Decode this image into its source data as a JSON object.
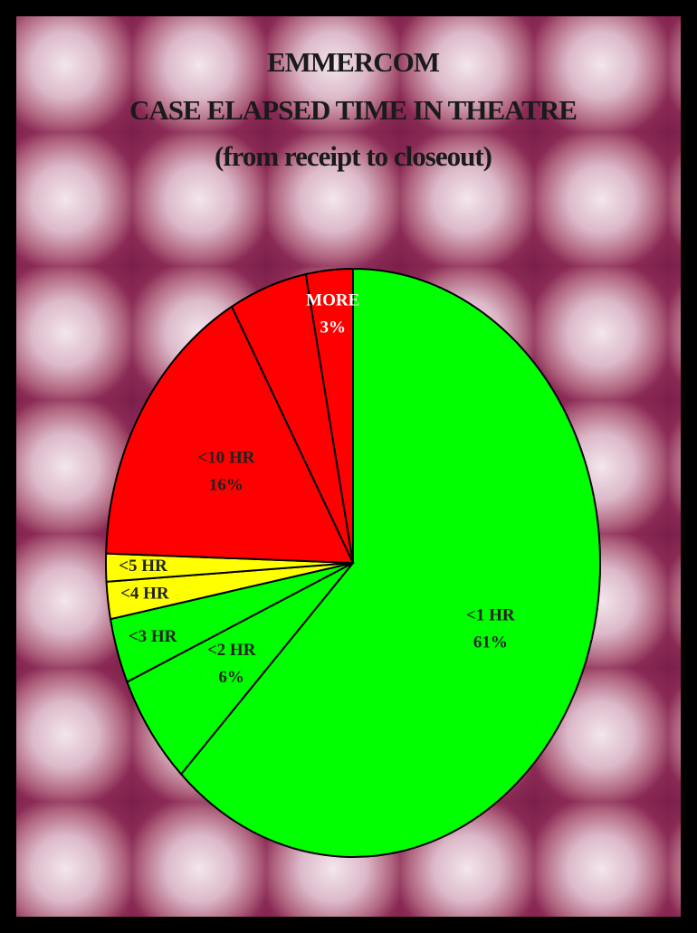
{
  "chart_data": {
    "type": "pie",
    "title": [
      "EMMERCOM",
      "CASE ELAPSED TIME IN THEATRE",
      "(from receipt to closeout)"
    ],
    "categories": [
      "<1 HR",
      "<2 HR",
      "<3 HR",
      "<4 HR",
      "<5 HR",
      "<10 HR",
      null,
      "MORE"
    ],
    "values": [
      61,
      6,
      3.5,
      2,
      1.5,
      16,
      5,
      3
    ],
    "value_labels": [
      "61%",
      "6%",
      null,
      null,
      null,
      "16%",
      null,
      "3%"
    ],
    "colors": [
      "#00ff00",
      "#00ff00",
      "#00ff00",
      "#ffff00",
      "#ffff00",
      "#ff0000",
      "#ff0000",
      "#ff0000"
    ]
  }
}
